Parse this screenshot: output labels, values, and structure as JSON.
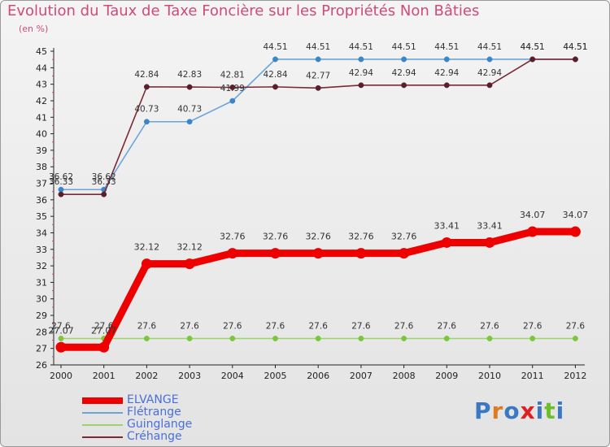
{
  "title": "Evolution du Taux de Taxe Foncière sur les Propriétés Non Bâties",
  "subtitle": "(en %)",
  "logo": {
    "text": "Proxiti",
    "letter_colors": [
      "#3b78c4",
      "#e07a20",
      "#3b78c4",
      "#e02020",
      "#3b78c4",
      "#6bbf2a",
      "#3b78c4"
    ]
  },
  "chart_data": {
    "type": "line",
    "title": "Evolution du Taux de Taxe Foncière sur les Propriétés Non Bâties",
    "ylabel": "(en %)",
    "xlabel": "",
    "categories": [
      "2000",
      "2001",
      "2002",
      "2003",
      "2004",
      "2005",
      "2006",
      "2007",
      "2008",
      "2009",
      "2010",
      "2011",
      "2012"
    ],
    "ylim": [
      26,
      45
    ],
    "yticks": [
      26,
      27,
      28,
      29,
      30,
      31,
      32,
      33,
      34,
      35,
      36,
      37,
      38,
      39,
      40,
      41,
      42,
      43,
      44,
      45
    ],
    "grid": false,
    "legend_position": "bottom-left",
    "series": [
      {
        "name": "ELVANGE",
        "color": "#ee0000",
        "emphasis": true,
        "values": [
          27.07,
          27.07,
          32.12,
          32.12,
          32.76,
          32.76,
          32.76,
          32.76,
          32.76,
          33.41,
          33.41,
          34.07,
          34.07
        ],
        "labels": [
          "27.07",
          "27.07",
          "32.12",
          "32.12",
          "32.76",
          "32.76",
          "32.76",
          "32.76",
          "32.76",
          "33.41",
          "33.41",
          "34.07",
          "34.07"
        ]
      },
      {
        "name": "Flétrange",
        "color": "#6aa4d8",
        "marker": "#3a86c8",
        "emphasis": false,
        "values": [
          36.62,
          36.62,
          40.73,
          40.73,
          41.99,
          44.51,
          44.51,
          44.51,
          44.51,
          44.51,
          44.51,
          44.51,
          44.51
        ],
        "labels": [
          "36.62",
          "36.62",
          "40.73",
          "40.73",
          "41.99",
          "44.51",
          "44.51",
          "44.51",
          "44.51",
          "44.51",
          "44.51",
          "44.51",
          "44.51"
        ]
      },
      {
        "name": "Guinglange",
        "color": "#9bd46a",
        "marker": "#7cc63c",
        "emphasis": false,
        "values": [
          27.6,
          27.6,
          27.6,
          27.6,
          27.6,
          27.6,
          27.6,
          27.6,
          27.6,
          27.6,
          27.6,
          27.6,
          27.6
        ],
        "labels": [
          "27.6",
          "27.6",
          "27.6",
          "27.6",
          "27.6",
          "27.6",
          "27.6",
          "27.6",
          "27.6",
          "27.6",
          "27.6",
          "27.6",
          "27.6"
        ]
      },
      {
        "name": "Créhange",
        "color": "#7a2a35",
        "marker": "#5a1f28",
        "emphasis": false,
        "values": [
          36.33,
          36.33,
          42.84,
          42.83,
          42.81,
          42.84,
          42.77,
          42.94,
          42.94,
          42.94,
          42.94,
          44.51,
          44.51
        ],
        "labels": [
          "36.33",
          "36.33",
          "42.84",
          "42.83",
          "42.81",
          "42.84",
          "42.77",
          "42.94",
          "42.94",
          "42.94",
          "42.94",
          "44.51",
          "44.51"
        ]
      }
    ]
  }
}
